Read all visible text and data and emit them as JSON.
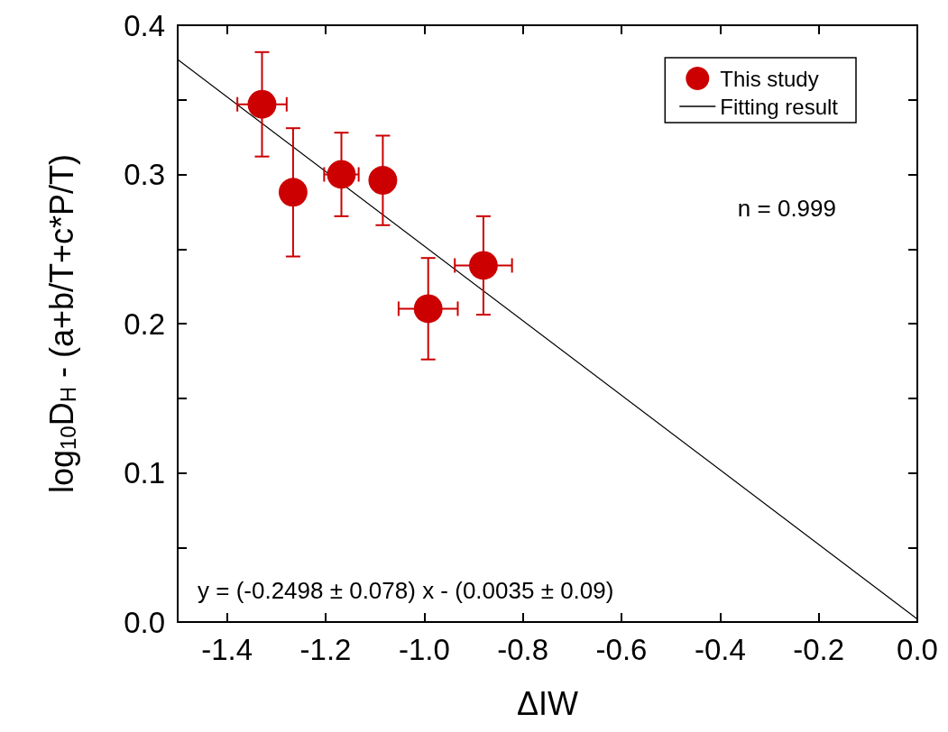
{
  "chart_data": {
    "type": "scatter",
    "xlabel": "ΔIW",
    "ylabel": "log$_{10}$D$_{H}$ - (a+b/T+c*P/T)",
    "xlim": [
      -1.5,
      0.0
    ],
    "xticks": [
      -1.4,
      -1.2,
      {
        "value": -1.0,
        "label": "-1.0"
      },
      -0.8,
      -0.6,
      -0.4,
      -0.2,
      {
        "value": 0.0,
        "label": "0.0"
      }
    ],
    "ylim": [
      0.0,
      0.4
    ],
    "yticks": [
      {
        "value": 0.0,
        "label": "0.0"
      },
      {
        "value": 0.05,
        "label": null
      },
      0.1,
      {
        "value": 0.15,
        "label": null
      },
      0.2,
      {
        "value": 0.25,
        "label": null
      },
      0.3,
      {
        "value": 0.35,
        "label": null
      },
      0.4
    ],
    "grid": false,
    "legend": "top right",
    "series": [
      {
        "name": "This study",
        "type": "scatter",
        "marker": "circle",
        "color": "#cc0000",
        "x": [
          -1.329,
          -1.266,
          -1.168,
          -1.084,
          -0.992,
          -0.88
        ],
        "values": [
          0.347,
          0.288,
          0.3,
          0.296,
          0.21,
          0.239
        ],
        "errors": [
          0.035,
          0.043,
          0.028,
          0.03,
          0.034,
          0.033
        ],
        "xerrors": [
          0.05,
          null,
          0.035,
          null,
          0.06,
          0.058
        ]
      },
      {
        "name": "Fitting result",
        "type": "line",
        "marker": "none",
        "line_style": "solid",
        "color": "#000000",
        "x": [
          -1.5,
          0.0
        ],
        "values": [
          0.377,
          0.002
        ]
      }
    ],
    "annotations": [
      "n = 0.999",
      "y = (-0.2498 ± 0.078) x - (0.0035 ± 0.09)"
    ]
  }
}
